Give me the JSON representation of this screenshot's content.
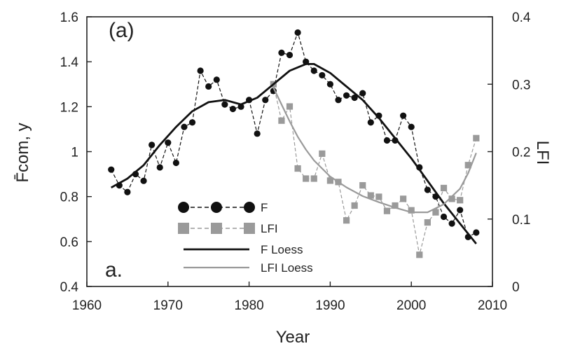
{
  "chart_data": {
    "type": "line",
    "panel_labels": [
      "(a)",
      "a."
    ],
    "xlabel": "Year",
    "ylabel": "F̄com, y",
    "y2label": "LFI",
    "xlim": [
      1960,
      2010
    ],
    "ylim": [
      0.4,
      1.6
    ],
    "y2lim": [
      0,
      0.4
    ],
    "x_ticks": [
      "1960",
      "1970",
      "1980",
      "1990",
      "2000",
      "2010"
    ],
    "y_ticks": [
      "0.4",
      "0.6",
      "0.8",
      "1",
      "1.2",
      "1.4",
      "1.6"
    ],
    "y2_ticks": [
      "0",
      "0.1",
      "0.2",
      "0.3",
      "0.4"
    ],
    "grid": false,
    "legend_position": "lower-left",
    "series": [
      {
        "name": "F",
        "axis": "left",
        "style": "dashed-markers",
        "marker": "circle",
        "color": "#111111",
        "points": [
          [
            1963,
            0.92
          ],
          [
            1964,
            0.85
          ],
          [
            1965,
            0.82
          ],
          [
            1966,
            0.9
          ],
          [
            1967,
            0.87
          ],
          [
            1968,
            1.03
          ],
          [
            1969,
            0.93
          ],
          [
            1970,
            1.04
          ],
          [
            1971,
            0.95
          ],
          [
            1972,
            1.11
          ],
          [
            1973,
            1.13
          ],
          [
            1974,
            1.36
          ],
          [
            1975,
            1.29
          ],
          [
            1976,
            1.32
          ],
          [
            1977,
            1.21
          ],
          [
            1978,
            1.19
          ],
          [
            1979,
            1.2
          ],
          [
            1980,
            1.23
          ],
          [
            1981,
            1.08
          ],
          [
            1982,
            1.23
          ],
          [
            1983,
            1.27
          ],
          [
            1984,
            1.44
          ],
          [
            1985,
            1.43
          ],
          [
            1986,
            1.53
          ],
          [
            1987,
            1.4
          ],
          [
            1988,
            1.36
          ],
          [
            1989,
            1.34
          ],
          [
            1990,
            1.3
          ],
          [
            1991,
            1.23
          ],
          [
            1992,
            1.25
          ],
          [
            1993,
            1.24
          ],
          [
            1994,
            1.26
          ],
          [
            1995,
            1.13
          ],
          [
            1996,
            1.16
          ],
          [
            1997,
            1.05
          ],
          [
            1998,
            1.05
          ],
          [
            1999,
            1.16
          ],
          [
            2000,
            1.11
          ],
          [
            2001,
            0.93
          ],
          [
            2002,
            0.83
          ],
          [
            2003,
            0.8
          ],
          [
            2004,
            0.71
          ],
          [
            2005,
            0.68
          ],
          [
            2006,
            0.74
          ],
          [
            2007,
            0.62
          ],
          [
            2008,
            0.64
          ]
        ]
      },
      {
        "name": "LFI",
        "axis": "right",
        "style": "dashed-markers",
        "marker": "square",
        "color": "#9a9a9a",
        "points": [
          [
            1983,
            0.3
          ],
          [
            1984,
            0.246
          ],
          [
            1985,
            0.267
          ],
          [
            1986,
            0.175
          ],
          [
            1987,
            0.16
          ],
          [
            1988,
            0.16
          ],
          [
            1989,
            0.197
          ],
          [
            1990,
            0.157
          ],
          [
            1991,
            0.155
          ],
          [
            1992,
            0.098
          ],
          [
            1993,
            0.12
          ],
          [
            1994,
            0.15
          ],
          [
            1995,
            0.135
          ],
          [
            1996,
            0.133
          ],
          [
            1997,
            0.112
          ],
          [
            1998,
            0.12
          ],
          [
            1999,
            0.13
          ],
          [
            2000,
            0.113
          ],
          [
            2001,
            0.047
          ],
          [
            2002,
            0.095
          ],
          [
            2003,
            0.11
          ],
          [
            2004,
            0.146
          ],
          [
            2005,
            0.13
          ],
          [
            2006,
            0.128
          ],
          [
            2007,
            0.18
          ],
          [
            2008,
            0.22
          ]
        ]
      },
      {
        "name": "F Loess",
        "axis": "left",
        "style": "solid",
        "color": "#111111",
        "points": [
          [
            1963,
            0.84
          ],
          [
            1965,
            0.88
          ],
          [
            1967,
            0.94
          ],
          [
            1969,
            1.03
          ],
          [
            1971,
            1.11
          ],
          [
            1973,
            1.18
          ],
          [
            1975,
            1.22
          ],
          [
            1977,
            1.23
          ],
          [
            1979,
            1.21
          ],
          [
            1981,
            1.24
          ],
          [
            1983,
            1.3
          ],
          [
            1985,
            1.36
          ],
          [
            1987,
            1.39
          ],
          [
            1988,
            1.39
          ],
          [
            1990,
            1.35
          ],
          [
            1992,
            1.29
          ],
          [
            1994,
            1.23
          ],
          [
            1996,
            1.15
          ],
          [
            1998,
            1.06
          ],
          [
            2000,
            0.97
          ],
          [
            2002,
            0.87
          ],
          [
            2004,
            0.77
          ],
          [
            2006,
            0.68
          ],
          [
            2008,
            0.59
          ]
        ]
      },
      {
        "name": "LFI Loess",
        "axis": "right",
        "style": "solid",
        "color": "#9a9a9a",
        "points": [
          [
            1983,
            0.295
          ],
          [
            1984,
            0.27
          ],
          [
            1985,
            0.245
          ],
          [
            1986,
            0.222
          ],
          [
            1987,
            0.203
          ],
          [
            1988,
            0.187
          ],
          [
            1990,
            0.163
          ],
          [
            1992,
            0.147
          ],
          [
            1994,
            0.134
          ],
          [
            1996,
            0.125
          ],
          [
            1998,
            0.117
          ],
          [
            2000,
            0.11
          ],
          [
            2002,
            0.11
          ],
          [
            2004,
            0.122
          ],
          [
            2006,
            0.145
          ],
          [
            2007,
            0.168
          ],
          [
            2008,
            0.198
          ]
        ]
      }
    ]
  }
}
